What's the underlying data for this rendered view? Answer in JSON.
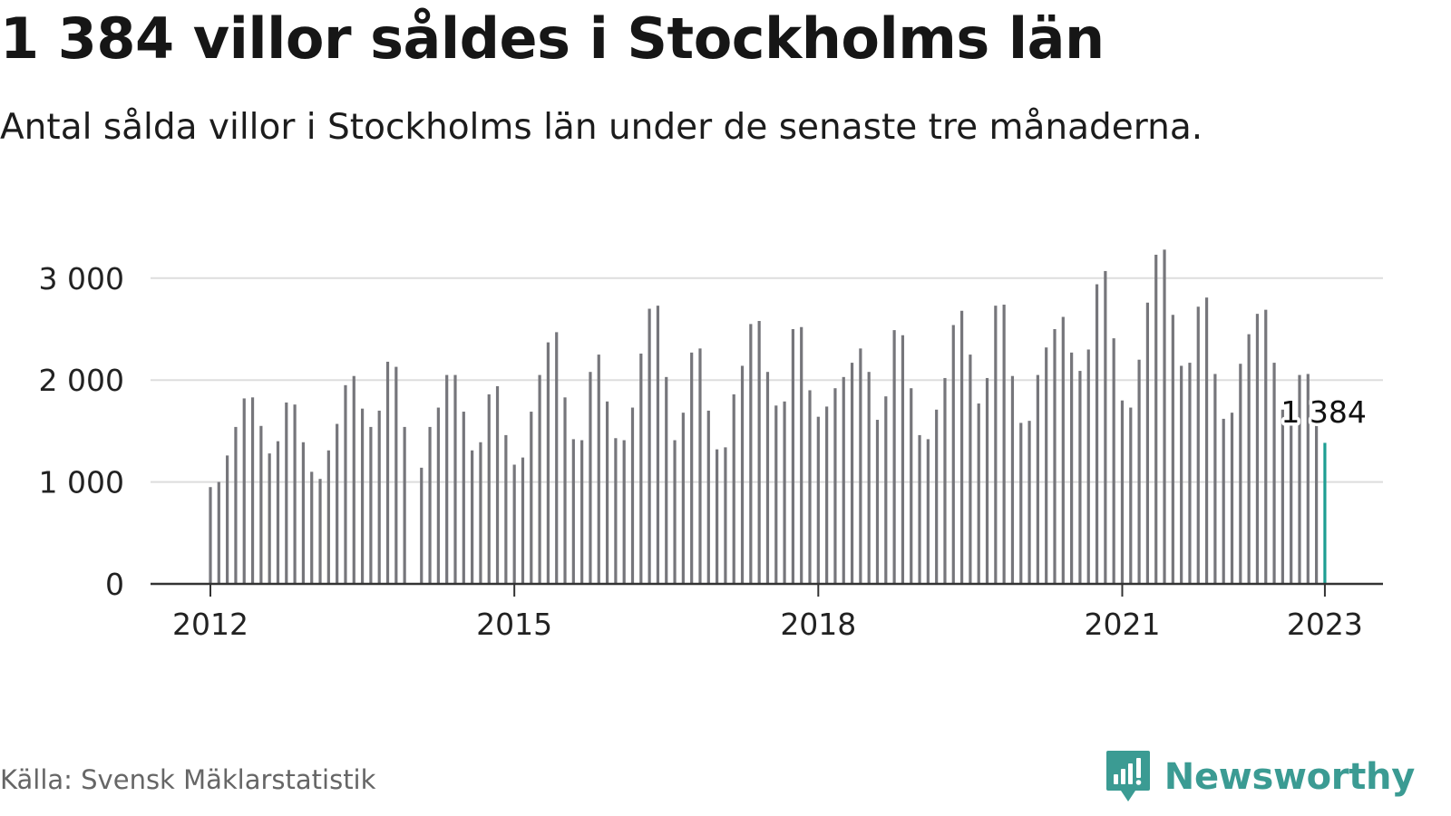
{
  "title": "1 384 villor såldes i Stockholms län",
  "subtitle": "Antal sålda villor i Stockholms län under de senaste tre månaderna.",
  "source": "Källa: Svensk Mäklarstatistik",
  "brand": {
    "name": "Newsworthy",
    "icon": "newsworthy-logo-icon"
  },
  "colors": {
    "bar": "#76767b",
    "highlight": "#1d9e92",
    "grid": "#dddddd",
    "axis": "#333333",
    "brand": "#3b9b93"
  },
  "chart_data": {
    "type": "bar",
    "title": "1 384 villor såldes i Stockholms län",
    "subtitle": "Antal sålda villor i Stockholms län under de senaste tre månaderna.",
    "xlabel": "",
    "ylabel": "",
    "ylim": [
      0,
      3300
    ],
    "yticks": [
      0,
      1000,
      2000,
      3000
    ],
    "ytick_labels": [
      "0",
      "1 000",
      "2 000",
      "3 000"
    ],
    "xticks": [
      {
        "label": "2012",
        "index": 0
      },
      {
        "label": "2015",
        "index": 36
      },
      {
        "label": "2018",
        "index": 72
      },
      {
        "label": "2021",
        "index": 108
      },
      {
        "label": "2023",
        "index": 132
      }
    ],
    "grid": "horizontal",
    "legend": "none",
    "highlight": {
      "index": 132,
      "value": 1384,
      "label": "1 384"
    },
    "values": [
      950,
      1000,
      1260,
      1540,
      1820,
      1830,
      1550,
      1280,
      1400,
      1780,
      1760,
      1390,
      1100,
      1030,
      1310,
      1570,
      1950,
      2040,
      1720,
      1540,
      1700,
      2180,
      2130,
      1540,
      null,
      1140,
      1540,
      1730,
      2050,
      2050,
      1690,
      1310,
      1390,
      1860,
      1940,
      1460,
      1170,
      1240,
      1690,
      2050,
      2370,
      2470,
      1830,
      1420,
      1410,
      2080,
      2250,
      1790,
      1430,
      1410,
      1730,
      2260,
      2700,
      2730,
      2030,
      1410,
      1680,
      2270,
      2310,
      1700,
      1320,
      1340,
      1860,
      2140,
      2550,
      2580,
      2080,
      1750,
      1790,
      2500,
      2520,
      1900,
      1640,
      1740,
      1920,
      2030,
      2170,
      2310,
      2080,
      1610,
      1840,
      2490,
      2440,
      1920,
      1460,
      1420,
      1710,
      2020,
      2540,
      2680,
      2250,
      1770,
      2020,
      2730,
      2740,
      2040,
      1580,
      1600,
      2050,
      2320,
      2500,
      2620,
      2270,
      2090,
      2300,
      2940,
      3070,
      2410,
      1800,
      1730,
      2200,
      2760,
      3230,
      3280,
      2640,
      2140,
      2170,
      2720,
      2810,
      2060,
      1620,
      1680,
      2160,
      2450,
      2650,
      2690,
      2170,
      1710,
      1680,
      2050,
      2060,
      1600,
      1384
    ]
  }
}
